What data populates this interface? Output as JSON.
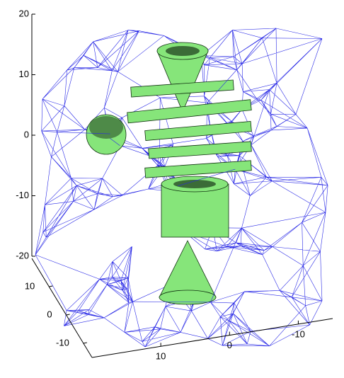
{
  "chart_data": {
    "type": "mesh3d",
    "zlim": [
      -20,
      20
    ],
    "zticks": [
      20,
      10,
      0,
      -10,
      -20
    ],
    "ylim": [
      -15,
      20
    ],
    "yticks": [
      10,
      0,
      -10
    ],
    "xlim": [
      20,
      -15
    ],
    "xticks": [
      10,
      0,
      -10
    ],
    "mesh_color": "#2a2ae6",
    "surface_color": "#86e57a"
  }
}
